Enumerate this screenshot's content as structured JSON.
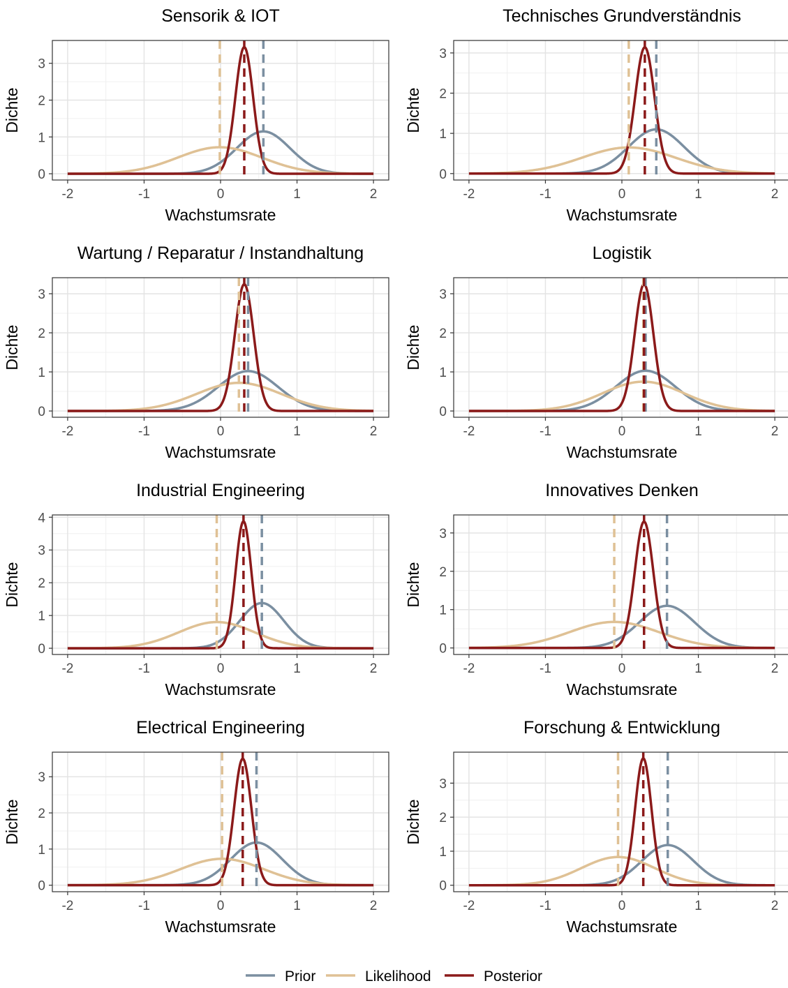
{
  "chart_data": [
    {
      "type": "density",
      "title": "Sensorik & IOT",
      "xlabel": "Wachstumsrate",
      "ylabel": "Dichte",
      "xlim": [
        -2.2,
        2.2
      ],
      "xticks": [
        -2,
        -1,
        0,
        1,
        2
      ],
      "ylim": [
        -0.17,
        3.62
      ],
      "yticks": [
        0,
        1,
        2,
        3
      ],
      "grid": true,
      "series": [
        {
          "name": "Prior",
          "color": "#7b8fa1",
          "mean": 0.56,
          "sd": 0.347
        },
        {
          "name": "Likelihood",
          "color": "#dfc195",
          "mean": -0.01,
          "sd": 0.554
        },
        {
          "name": "Posterior",
          "color": "#8b1a1a",
          "mean": 0.31,
          "sd": 0.116
        }
      ]
    },
    {
      "type": "density",
      "title": "Technisches Grundverständnis",
      "xlabel": "Wachstumsrate",
      "ylabel": "Dichte",
      "xlim": [
        -2.2,
        2.2
      ],
      "xticks": [
        -2,
        -1,
        0,
        1,
        2
      ],
      "ylim": [
        -0.16,
        3.31
      ],
      "yticks": [
        0,
        1,
        2,
        3
      ],
      "grid": true,
      "series": [
        {
          "name": "Prior",
          "color": "#7b8fa1",
          "mean": 0.45,
          "sd": 0.363
        },
        {
          "name": "Likelihood",
          "color": "#dfc195",
          "mean": 0.09,
          "sd": 0.614
        },
        {
          "name": "Posterior",
          "color": "#8b1a1a",
          "mean": 0.3,
          "sd": 0.127
        }
      ]
    },
    {
      "type": "density",
      "title": "Wartung / Reparatur / Instandhaltung",
      "xlabel": "Wachstumsrate",
      "ylabel": "Dichte",
      "xlim": [
        -2.2,
        2.2
      ],
      "xticks": [
        -2,
        -1,
        0,
        1,
        2
      ],
      "ylim": [
        -0.16,
        3.41
      ],
      "yticks": [
        0,
        1,
        2,
        3
      ],
      "grid": true,
      "series": [
        {
          "name": "Prior",
          "color": "#7b8fa1",
          "mean": 0.36,
          "sd": 0.391
        },
        {
          "name": "Likelihood",
          "color": "#dfc195",
          "mean": 0.24,
          "sd": 0.554
        },
        {
          "name": "Posterior",
          "color": "#8b1a1a",
          "mean": 0.31,
          "sd": 0.123
        }
      ]
    },
    {
      "type": "density",
      "title": "Logistik",
      "xlabel": "Wachstumsrate",
      "ylabel": "Dichte",
      "xlim": [
        -2.2,
        2.2
      ],
      "xticks": [
        -2,
        -1,
        0,
        1,
        2
      ],
      "ylim": [
        -0.16,
        3.41
      ],
      "yticks": [
        0,
        1,
        2,
        3
      ],
      "grid": true,
      "series": [
        {
          "name": "Prior",
          "color": "#7b8fa1",
          "mean": 0.31,
          "sd": 0.387
        },
        {
          "name": "Likelihood",
          "color": "#dfc195",
          "mean": 0.28,
          "sd": 0.532
        },
        {
          "name": "Posterior",
          "color": "#8b1a1a",
          "mean": 0.29,
          "sd": 0.123
        }
      ]
    },
    {
      "type": "density",
      "title": "Industrial Engineering",
      "xlabel": "Wachstumsrate",
      "ylabel": "Dichte",
      "xlim": [
        -2.2,
        2.2
      ],
      "xticks": [
        -2,
        -1,
        0,
        1,
        2
      ],
      "ylim": [
        -0.19,
        4.07
      ],
      "yticks": [
        0,
        1,
        2,
        3,
        4
      ],
      "grid": true,
      "series": [
        {
          "name": "Prior",
          "color": "#7b8fa1",
          "mean": 0.54,
          "sd": 0.289
        },
        {
          "name": "Likelihood",
          "color": "#dfc195",
          "mean": -0.05,
          "sd": 0.499
        },
        {
          "name": "Posterior",
          "color": "#8b1a1a",
          "mean": 0.3,
          "sd": 0.103
        }
      ]
    },
    {
      "type": "density",
      "title": "Innovatives Denken",
      "xlabel": "Wachstumsrate",
      "ylabel": "Dichte",
      "xlim": [
        -2.2,
        2.2
      ],
      "xticks": [
        -2,
        -1,
        0,
        1,
        2
      ],
      "ylim": [
        -0.17,
        3.47
      ],
      "yticks": [
        0,
        1,
        2,
        3
      ],
      "grid": true,
      "series": [
        {
          "name": "Prior",
          "color": "#7b8fa1",
          "mean": 0.59,
          "sd": 0.363
        },
        {
          "name": "Likelihood",
          "color": "#dfc195",
          "mean": -0.1,
          "sd": 0.587
        },
        {
          "name": "Posterior",
          "color": "#8b1a1a",
          "mean": 0.29,
          "sd": 0.121
        }
      ]
    },
    {
      "type": "density",
      "title": "Electrical Engineering",
      "xlabel": "Wachstumsrate",
      "ylabel": "Dichte",
      "xlim": [
        -2.2,
        2.2
      ],
      "xticks": [
        -2,
        -1,
        0,
        1,
        2
      ],
      "ylim": [
        -0.18,
        3.68
      ],
      "yticks": [
        0,
        1,
        2,
        3
      ],
      "grid": true,
      "series": [
        {
          "name": "Prior",
          "color": "#7b8fa1",
          "mean": 0.47,
          "sd": 0.338
        },
        {
          "name": "Likelihood",
          "color": "#dfc195",
          "mean": 0.02,
          "sd": 0.546
        },
        {
          "name": "Posterior",
          "color": "#8b1a1a",
          "mean": 0.29,
          "sd": 0.114
        }
      ]
    },
    {
      "type": "density",
      "title": "Forschung & Entwicklung",
      "xlabel": "Wachstumsrate",
      "ylabel": "Dichte",
      "xlim": [
        -2.2,
        2.2
      ],
      "xticks": [
        -2,
        -1,
        0,
        1,
        2
      ],
      "ylim": [
        -0.19,
        3.91
      ],
      "yticks": [
        0,
        1,
        2,
        3
      ],
      "grid": true,
      "series": [
        {
          "name": "Prior",
          "color": "#7b8fa1",
          "mean": 0.6,
          "sd": 0.338
        },
        {
          "name": "Likelihood",
          "color": "#dfc195",
          "mean": -0.05,
          "sd": 0.481
        },
        {
          "name": "Posterior",
          "color": "#8b1a1a",
          "mean": 0.28,
          "sd": 0.107
        }
      ]
    }
  ]
}
